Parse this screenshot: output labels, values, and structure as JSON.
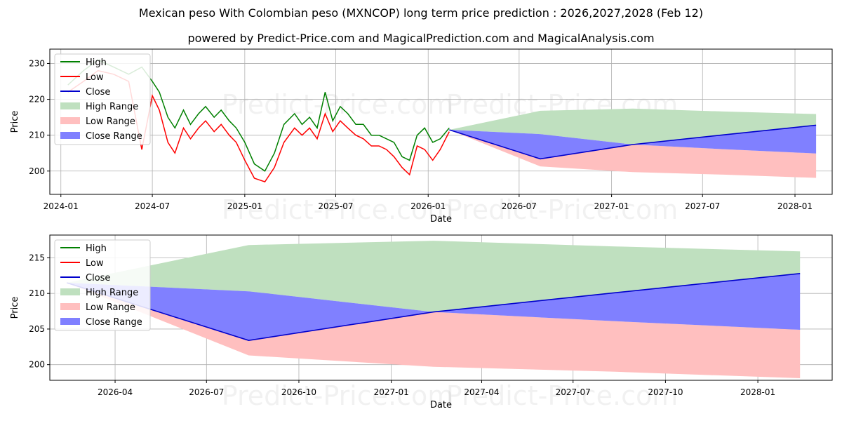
{
  "title": "Mexican peso With Colombian peso (MXNCOP) long term price prediction : 2026,2027,2028 (Feb 12)",
  "subtitle": "powered by Predict-Price.com and MagicalPrediction.com and MagicalAnalysis.com",
  "watermark": "Predict-Price.com",
  "colors": {
    "high": "#008000",
    "low": "#ff0000",
    "close": "#0000cc",
    "high_range": "#bfe0bf",
    "low_range": "#ffbfbf",
    "close_range": "#8080ff"
  },
  "chart_data": [
    {
      "type": "line",
      "ylabel": "Price",
      "xlabel": "Date",
      "ylim": [
        193.5,
        234
      ],
      "xlim": [
        "2023-12-10",
        "2028-03-15"
      ],
      "yticks": [
        200,
        210,
        220,
        230
      ],
      "xticks": [
        "2024-01",
        "2024-07",
        "2025-01",
        "2025-07",
        "2026-01",
        "2026-07",
        "2027-01",
        "2027-07",
        "2028-01"
      ],
      "legend": [
        "High",
        "Low",
        "Close",
        "High Range",
        "Low Range",
        "Close Range"
      ],
      "legend_position": "upper-left",
      "history": {
        "dates": [
          "2024-01-15",
          "2024-02-15",
          "2024-03-15",
          "2024-04-15",
          "2024-05-15",
          "2024-06-10",
          "2024-07-01",
          "2024-07-15",
          "2024-08-01",
          "2024-08-15",
          "2024-09-01",
          "2024-09-15",
          "2024-10-01",
          "2024-10-15",
          "2024-11-01",
          "2024-11-15",
          "2024-12-01",
          "2024-12-15",
          "2025-01-01",
          "2025-01-20",
          "2025-02-10",
          "2025-03-01",
          "2025-03-20",
          "2025-04-10",
          "2025-04-25",
          "2025-05-10",
          "2025-05-25",
          "2025-06-10",
          "2025-06-25",
          "2025-07-10",
          "2025-07-25",
          "2025-08-10",
          "2025-08-25",
          "2025-09-10",
          "2025-09-25",
          "2025-10-10",
          "2025-10-25",
          "2025-11-10",
          "2025-11-25",
          "2025-12-10",
          "2025-12-25",
          "2026-01-10",
          "2026-01-25",
          "2026-02-12"
        ],
        "high": [
          224,
          228,
          231,
          229,
          227,
          229,
          225,
          222,
          215,
          212,
          217,
          213,
          216,
          218,
          215,
          217,
          214,
          212,
          208,
          202,
          200,
          205,
          213,
          216,
          213,
          215,
          212,
          222,
          214,
          218,
          216,
          213,
          213,
          210,
          210,
          209,
          208,
          204,
          203,
          210,
          212,
          208,
          209,
          212
        ],
        "low": [
          222,
          225,
          228,
          227,
          225,
          206,
          221,
          217,
          208,
          205,
          212,
          209,
          212,
          214,
          211,
          213,
          210,
          208,
          203,
          198,
          197,
          201,
          208,
          212,
          210,
          212,
          209,
          216,
          211,
          214,
          212,
          210,
          209,
          207,
          207,
          206,
          204,
          201,
          199,
          207,
          206,
          203,
          206,
          211
        ]
      },
      "forecast": {
        "dates": [
          "2026-02-12",
          "2026-08-12",
          "2027-02-12",
          "2027-08-12",
          "2028-02-12"
        ],
        "high": [
          211.5,
          216.8,
          217.4,
          216.6,
          215.9
        ],
        "low": [
          211.5,
          201.3,
          199.7,
          199.0,
          198.1
        ],
        "close": [
          211.5,
          203.4,
          207.4,
          210.1,
          212.8
        ],
        "close_range_upper": [
          211.5,
          210.3,
          207.4,
          210.1,
          212.8
        ],
        "close_range_lower": [
          211.5,
          203.4,
          207.4,
          206.1,
          204.9
        ],
        "low_range_upper": [
          211.5,
          203.4,
          207.4,
          206.1,
          204.9
        ],
        "high_range_lower": [
          211.5,
          210.3,
          207.4,
          210.1,
          212.8
        ]
      }
    },
    {
      "type": "line",
      "ylabel": "Price",
      "xlabel": "Date",
      "ylim": [
        197.8,
        218.2
      ],
      "xlim": [
        "2026-01-26",
        "2028-03-15"
      ],
      "yticks": [
        200,
        205,
        210,
        215
      ],
      "xticks": [
        "2026-04",
        "2026-07",
        "2026-10",
        "2027-01",
        "2027-04",
        "2027-07",
        "2027-10",
        "2028-01"
      ],
      "legend": [
        "High",
        "Low",
        "Close",
        "High Range",
        "Low Range",
        "Close Range"
      ],
      "legend_position": "upper-left",
      "forecast": {
        "dates": [
          "2026-02-12",
          "2026-08-12",
          "2027-02-12",
          "2027-08-12",
          "2028-02-12"
        ],
        "high": [
          211.5,
          216.8,
          217.4,
          216.6,
          215.9
        ],
        "low": [
          211.5,
          201.3,
          199.7,
          199.0,
          198.1
        ],
        "close": [
          211.5,
          203.4,
          207.4,
          210.1,
          212.8
        ],
        "close_range_upper": [
          211.5,
          210.3,
          207.4,
          210.1,
          212.8
        ],
        "close_range_lower": [
          211.5,
          203.4,
          207.4,
          206.1,
          204.9
        ],
        "low_range_upper": [
          211.5,
          203.4,
          207.4,
          206.1,
          204.9
        ],
        "high_range_lower": [
          211.5,
          210.3,
          207.4,
          210.1,
          212.8
        ]
      }
    }
  ]
}
